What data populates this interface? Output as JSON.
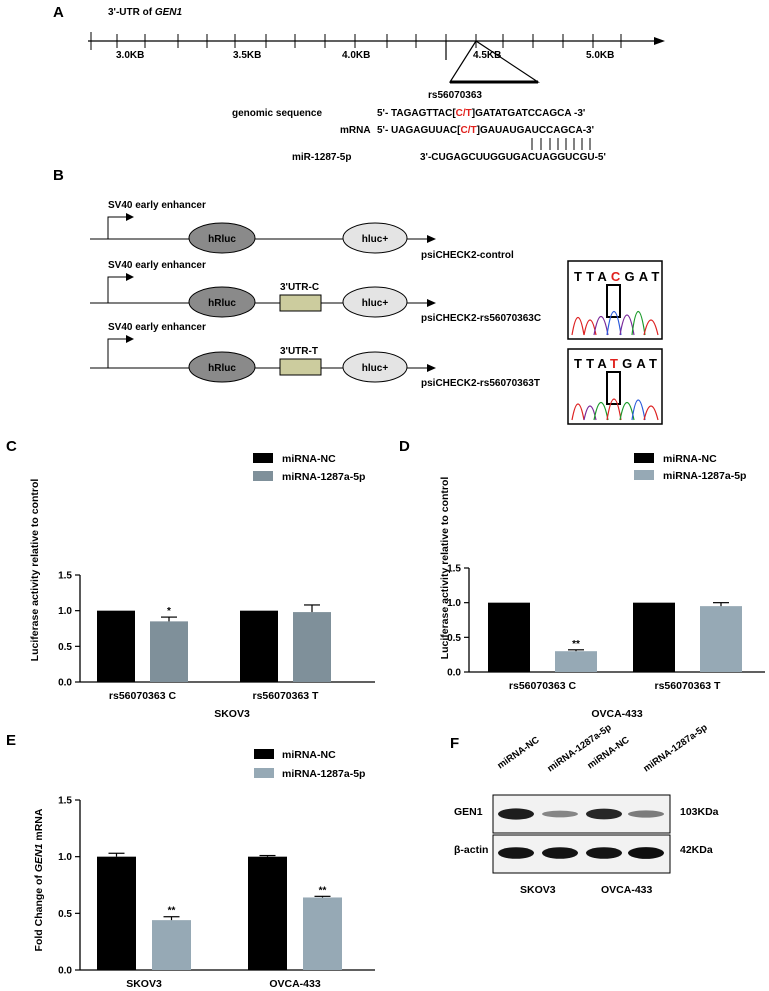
{
  "panelA": {
    "label": "A",
    "title_prefix": "3'-UTR of ",
    "title_gene": "GEN1",
    "ticks": [
      "3.0KB",
      "3.5KB",
      "4.0KB",
      "4.5KB",
      "5.0KB"
    ],
    "snp": "rs56070363",
    "genomic": {
      "label": "genomic sequence",
      "pre": "5'- TAGAGTTAC[",
      "var": "C/T",
      "post": "]GATATGATCCAGCA -3'"
    },
    "mrna": {
      "label": "mRNA",
      "pre": "5'- UAGAGUUAC[",
      "var": "C/T",
      "post": "]GAUAUGAUCCAGCA-3'"
    },
    "mir": {
      "label": "miR-1287-5p",
      "seq": "3'-CUGAGCUUGGUGACUAGGUCGU-5'"
    }
  },
  "panelB": {
    "label": "B",
    "enhancer": "SV40 early enhancer",
    "hrluc": "hRluc",
    "hluc": "hluc+",
    "utr_c": "3'UTR-C",
    "utr_t": "3'UTR-T",
    "construct1": "psiCHECK2-control",
    "construct2": "psiCHECK2-rs56070363C",
    "construct3": "psiCHECK2-rs56070363T",
    "chrom_c": {
      "pre": "TTA",
      "var": "C",
      "post": "GAT"
    },
    "chrom_t": {
      "pre": "TTA",
      "var": "T",
      "post": "GAT"
    }
  },
  "legend": {
    "nc": "miRNA-NC",
    "mir": "miRNA-1287a-5p"
  },
  "colors": {
    "nc": "#000000",
    "mir_c": "#7f909a",
    "mir_d": "#96a9b5",
    "sig": "#000000"
  },
  "chart_data": [
    {
      "id": "C",
      "type": "bar",
      "categories": [
        "rs56070363 C",
        "rs56070363  T"
      ],
      "series": [
        {
          "name": "miRNA-NC",
          "values": [
            1.0,
            1.0
          ],
          "errors": [
            0,
            0
          ]
        },
        {
          "name": "miRNA-1287a-5p",
          "values": [
            0.85,
            0.98
          ],
          "errors": [
            0.06,
            0.1
          ]
        }
      ],
      "significance": [
        [
          "",
          "*"
        ],
        [
          "",
          ""
        ]
      ],
      "ylabel": "Luciferase activity relative to control",
      "xlabel": "SKOV3",
      "ylim": [
        0,
        1.5
      ],
      "yticks": [
        "0.0",
        "0.5",
        "1.0",
        "1.5"
      ]
    },
    {
      "id": "D",
      "type": "bar",
      "categories": [
        "rs56070363   C",
        "rs56070363   T"
      ],
      "series": [
        {
          "name": "miRNA-NC",
          "values": [
            1.0,
            1.0
          ],
          "errors": [
            0,
            0
          ]
        },
        {
          "name": "miRNA-1287a-5p",
          "values": [
            0.3,
            0.95
          ],
          "errors": [
            0.02,
            0.05
          ]
        }
      ],
      "significance": [
        [
          "",
          "**"
        ],
        [
          "",
          ""
        ]
      ],
      "ylabel": "Luciferase activity relative to control",
      "xlabel": "OVCA-433",
      "ylim": [
        0,
        1.5
      ],
      "yticks": [
        "0.0",
        "0.5",
        "1.0",
        "1.5"
      ]
    },
    {
      "id": "E",
      "type": "bar",
      "categories": [
        "SKOV3",
        "OVCA-433"
      ],
      "series": [
        {
          "name": "miRNA-NC",
          "values": [
            1.0,
            1.0
          ],
          "errors": [
            0.03,
            0.01
          ]
        },
        {
          "name": "miRNA-1287a-5p",
          "values": [
            0.44,
            0.64
          ],
          "errors": [
            0.03,
            0.01
          ]
        }
      ],
      "significance": [
        [
          "",
          "**"
        ],
        [
          "",
          "**"
        ]
      ],
      "ylabel_pre": "Fold Change of ",
      "ylabel_gene": "GEN1",
      "ylabel_post": " mRNA",
      "xlabel": "",
      "ylim": [
        0,
        1.5
      ],
      "yticks": [
        "0.0",
        "0.5",
        "1.0",
        "1.5"
      ]
    }
  ],
  "panelF": {
    "label": "F",
    "lanes": [
      "miRNA-NC",
      "miRNA-1287a-5p",
      "miRNA-NC",
      "miRNA-1287a-5p"
    ],
    "rows": [
      {
        "label": "GEN1",
        "size": "103KDa",
        "intensity": [
          0.9,
          0.35,
          0.85,
          0.4
        ]
      },
      {
        "label": "β-actin",
        "size": "42KDa",
        "intensity": [
          0.95,
          0.95,
          0.95,
          0.98
        ]
      }
    ],
    "groups": [
      "SKOV3",
      "OVCA-433"
    ]
  }
}
